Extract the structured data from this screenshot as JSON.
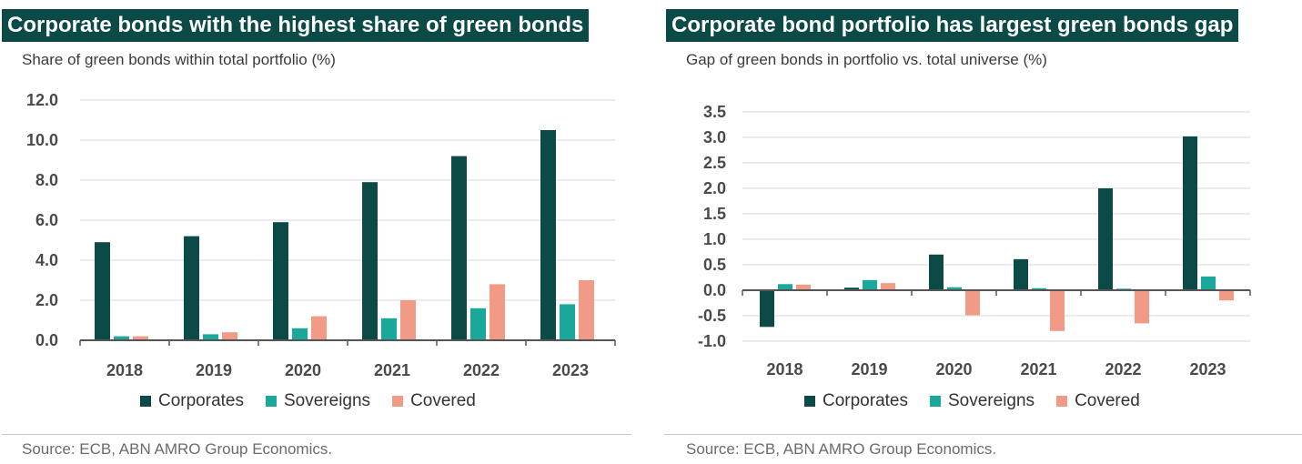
{
  "colors": {
    "corporates": "#0b4a47",
    "sovereigns": "#1aa89a",
    "covered": "#f19a86",
    "title_bg": "#0b4a47",
    "grid": "#d9d9d9",
    "axis": "#555555"
  },
  "left": {
    "title": "Corporate bonds with the highest share of green bonds",
    "source": "Source: ECB, ABN AMRO Group Economics."
  },
  "right": {
    "title": "Corporate bond portfolio has largest green bonds gap",
    "source": "Source:  ECB,  ABN AMRO Group Economics."
  },
  "chart_data": [
    {
      "type": "bar",
      "title": "Corporate bonds with the highest share of green bonds",
      "subtitle": "Share of green bonds within total portfolio (%)",
      "categories": [
        "2018",
        "2019",
        "2020",
        "2021",
        "2022",
        "2023"
      ],
      "series": [
        {
          "name": "Corporates",
          "values": [
            4.9,
            5.2,
            5.9,
            7.9,
            9.2,
            10.5
          ]
        },
        {
          "name": "Sovereigns",
          "values": [
            0.2,
            0.3,
            0.6,
            1.1,
            1.6,
            1.8
          ]
        },
        {
          "name": "Covered",
          "values": [
            0.2,
            0.4,
            1.2,
            2.0,
            2.8,
            3.0
          ]
        }
      ],
      "ylim": [
        0,
        12
      ],
      "yticks": [
        "0.0",
        "2.0",
        "4.0",
        "6.0",
        "8.0",
        "10.0",
        "12.0"
      ],
      "grid": true,
      "legend": "bottom"
    },
    {
      "type": "bar",
      "title": "Corporate bond portfolio has largest green bonds gap",
      "subtitle": "Gap of green bonds in portfolio vs. total universe (%)",
      "categories": [
        "2018",
        "2019",
        "2020",
        "2021",
        "2022",
        "2023"
      ],
      "series": [
        {
          "name": "Corporates",
          "values": [
            -0.72,
            0.05,
            0.7,
            0.61,
            2.0,
            3.02
          ]
        },
        {
          "name": "Sovereigns",
          "values": [
            0.12,
            0.2,
            0.06,
            0.04,
            0.03,
            0.27
          ]
        },
        {
          "name": "Covered",
          "values": [
            0.11,
            0.14,
            -0.49,
            -0.8,
            -0.65,
            -0.2
          ]
        }
      ],
      "ylim": [
        -1.0,
        3.5
      ],
      "yticks": [
        "-1.0",
        "-0.5",
        "0.0",
        "0.5",
        "1.0",
        "1.5",
        "2.0",
        "2.5",
        "3.0",
        "3.5"
      ],
      "grid": true,
      "legend": "bottom"
    }
  ]
}
